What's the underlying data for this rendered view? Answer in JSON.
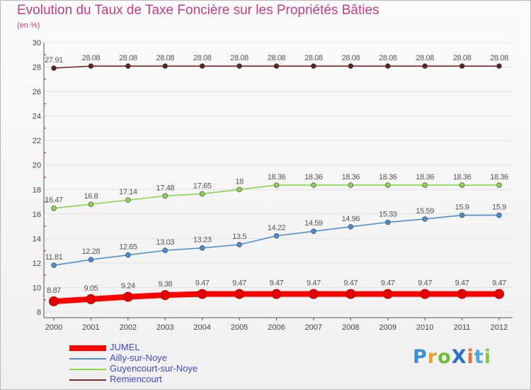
{
  "chart_data": {
    "type": "line",
    "title": "Evolution du Taux de Taxe Foncière sur les Propriétés Bâties",
    "subtitle": "(en %)",
    "xlabel": "",
    "ylabel": "",
    "categories": [
      "2000",
      "2001",
      "2002",
      "2003",
      "2004",
      "2005",
      "2006",
      "2007",
      "2008",
      "2009",
      "2010",
      "2011",
      "2012"
    ],
    "ylim": [
      8,
      30
    ],
    "yticks": [
      8,
      10,
      12,
      14,
      16,
      18,
      20,
      22,
      24,
      26,
      28,
      30
    ],
    "grid": true,
    "series": [
      {
        "name": "JUMEL",
        "color": "#ff0000",
        "point_color": "#e30000",
        "values": [
          8.87,
          9.05,
          9.24,
          9.38,
          9.47,
          9.47,
          9.47,
          9.47,
          9.47,
          9.47,
          9.47,
          9.47,
          9.47
        ],
        "labels": [
          "8.87",
          "9.05",
          "9.24",
          "9.38",
          "9.47",
          "9.47",
          "9.47",
          "9.47",
          "9.47",
          "9.47",
          "9.47",
          "9.47",
          "9.47"
        ]
      },
      {
        "name": "Ailly-sur-Noye",
        "color": "#5190cc",
        "point_color": "#4d8ed1",
        "values": [
          11.81,
          12.28,
          12.65,
          13.03,
          13.23,
          13.5,
          14.22,
          14.59,
          14.96,
          15.33,
          15.59,
          15.9,
          15.9
        ],
        "labels": [
          "11.81",
          "12.28",
          "12.65",
          "13.03",
          "13.23",
          "13.5",
          "14.22",
          "14.59",
          "14.96",
          "15.33",
          "15.59",
          "15.9",
          "15.9"
        ]
      },
      {
        "name": "Guyencourt-sur-Noye",
        "color": "#8ed44f",
        "point_color": "#8ed44f",
        "values": [
          16.47,
          16.8,
          17.14,
          17.48,
          17.65,
          18,
          18.36,
          18.36,
          18.36,
          18.36,
          18.36,
          18.36,
          18.36
        ],
        "labels": [
          "16.47",
          "16.8",
          "17.14",
          "17.48",
          "17.65",
          "18",
          "18.36",
          "18.36",
          "18.36",
          "18.36",
          "18.36",
          "18.36",
          "18.36"
        ]
      },
      {
        "name": "Remiencourt",
        "color": "#7a2e2e",
        "point_color": "#5e2424",
        "values": [
          27.91,
          28.08,
          28.08,
          28.08,
          28.08,
          28.08,
          28.08,
          28.08,
          28.08,
          28.08,
          28.08,
          28.08,
          28.08
        ],
        "labels": [
          "27.91",
          "28.08",
          "28.08",
          "28.08",
          "28.08",
          "28.08",
          "28.08",
          "28.08",
          "28.08",
          "28.08",
          "28.08",
          "28.08",
          "28.08"
        ]
      }
    ],
    "legend_position": "bottom-left"
  },
  "logo": {
    "text": "ProXiti",
    "letters": [
      "P",
      "r",
      "o",
      "X",
      "i",
      "t",
      "i"
    ],
    "colors": [
      "#3b8fd1",
      "#e8a12c",
      "#6dbb3a",
      "#2e6fbf",
      "#e86f2c",
      "#4aa8d8",
      "#8cc43c"
    ]
  },
  "colors": {
    "title": "#c43d84",
    "axis": "#555555",
    "grid": "#e2e2e2",
    "axis_red": "#e00000"
  }
}
